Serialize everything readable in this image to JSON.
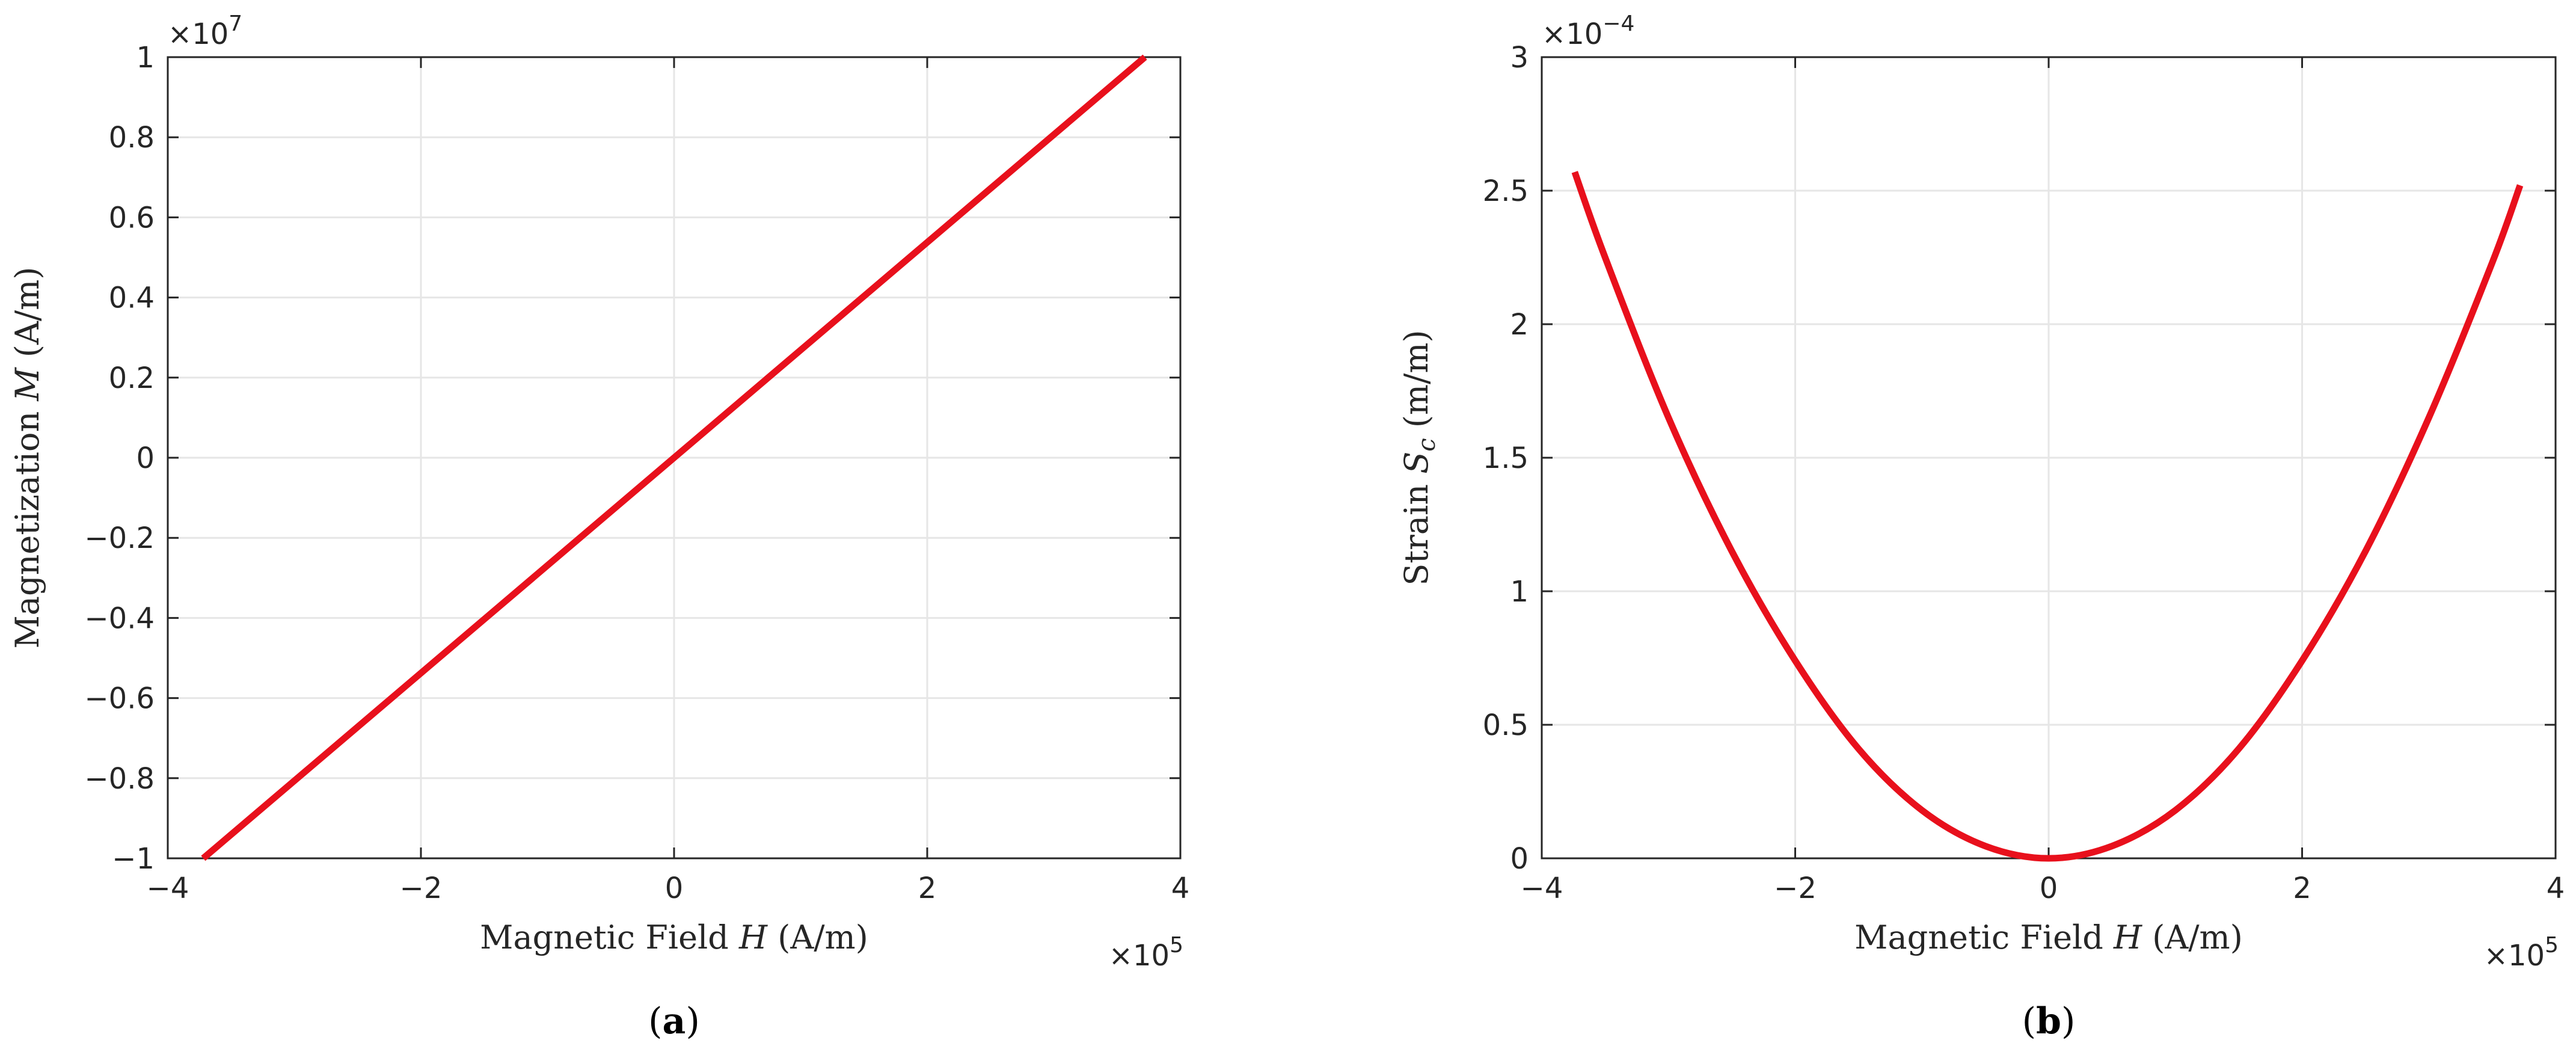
{
  "chart_data": [
    {
      "type": "line",
      "panel": "(a)",
      "panel_letter": "a",
      "xlabel": {
        "text": "Magnetic Field ",
        "var": "H",
        "unit": " (A/m)"
      },
      "ylabel": {
        "text": "Magnetization ",
        "var": "M",
        "unit": " (A/m)"
      },
      "x_multiplier": {
        "base": "×10",
        "exp": "5"
      },
      "y_multiplier": {
        "base": "×10",
        "exp": "7"
      },
      "xlim": [
        -4,
        4
      ],
      "ylim": [
        -1,
        1
      ],
      "xticks": [
        -4,
        -2,
        0,
        2,
        4
      ],
      "xtick_labels": [
        "−4",
        "−2",
        "0",
        "2",
        "4"
      ],
      "yticks": [
        -1,
        -0.8,
        -0.6,
        -0.4,
        -0.2,
        0,
        0.2,
        0.4,
        0.6,
        0.8,
        1
      ],
      "ytick_labels": [
        "−1",
        "−0.8",
        "−0.6",
        "−0.4",
        "−0.2",
        "0",
        "0.2",
        "0.4",
        "0.6",
        "0.8",
        "1"
      ],
      "grid": true,
      "series": [
        {
          "color": "#e8101c",
          "x": [
            -3.72,
            3.72
          ],
          "y": [
            -1.0,
            1.0
          ]
        }
      ]
    },
    {
      "type": "line",
      "panel": "(b)",
      "panel_letter": "b",
      "xlabel": {
        "text": "Magnetic Field ",
        "var": "H",
        "unit": " (A/m)"
      },
      "ylabel": {
        "text": "Strain ",
        "var": "S",
        "sub": "c",
        "unit": " (m/m)"
      },
      "x_multiplier": {
        "base": "×10",
        "exp": "5"
      },
      "y_multiplier": {
        "base": "×10",
        "exp": "−4"
      },
      "xlim": [
        -4,
        4
      ],
      "ylim": [
        0,
        3
      ],
      "xticks": [
        -4,
        -2,
        0,
        2,
        4
      ],
      "xtick_labels": [
        "−4",
        "−2",
        "0",
        "2",
        "4"
      ],
      "yticks": [
        0,
        0.5,
        1,
        1.5,
        2,
        2.5,
        3
      ],
      "ytick_labels": [
        "0",
        "0.5",
        "1",
        "1.5",
        "2",
        "2.5",
        "3"
      ],
      "grid": true,
      "series": [
        {
          "color": "#e8101c",
          "x": [
            -3.74,
            -3.5,
            -3.0,
            -2.5,
            -2.0,
            -1.5,
            -1.0,
            -0.5,
            0,
            0.5,
            1.0,
            1.5,
            2.0,
            2.5,
            3.0,
            3.5,
            3.72
          ],
          "y": [
            2.57,
            2.25,
            1.65,
            1.15,
            0.74,
            0.41,
            0.18,
            0.046,
            0,
            0.046,
            0.18,
            0.41,
            0.74,
            1.15,
            1.65,
            2.23,
            2.52
          ]
        }
      ]
    }
  ]
}
